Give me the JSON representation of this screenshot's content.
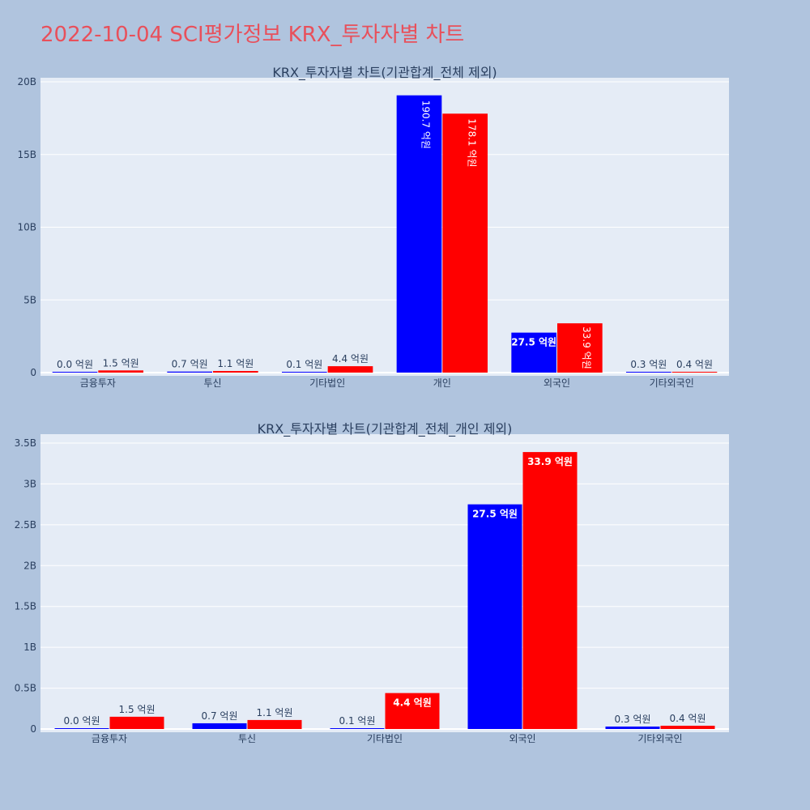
{
  "page": {
    "title": "2022-10-04 SCI평가정보 KRX_투자자별 차트",
    "colors": {
      "background": "#b0c4de",
      "plot_bg": "#e5ecf6",
      "grid": "#ffffff",
      "title": "#e8505b",
      "series_a": "#0000ff",
      "series_b": "#ff0000"
    }
  },
  "chart_data": [
    {
      "type": "bar",
      "title": "KRX_투자자별 차트(기관합계_전체 제외)",
      "xlabel": "",
      "ylabel": "",
      "categories": [
        "금융투자",
        "투신",
        "기타법인",
        "개인",
        "외국인",
        "기타외국인"
      ],
      "series": [
        {
          "color": "#0000ff",
          "values": [
            0.0,
            0.07,
            0.01,
            19.07,
            2.75,
            0.03
          ],
          "labels": [
            "0.0 억원",
            "0.7 억원",
            "0.1 억원",
            "190.7 억원",
            "27.5 억원",
            "0.3 억원"
          ]
        },
        {
          "color": "#ff0000",
          "values": [
            0.15,
            0.11,
            0.44,
            17.81,
            3.39,
            0.04
          ],
          "labels": [
            "1.5 억원",
            "1.1 억원",
            "4.4 억원",
            "178.1 억원",
            "33.9 억원",
            "0.4 억원"
          ]
        }
      ],
      "ylim": [
        0,
        20
      ],
      "yticks": [
        0,
        5,
        10,
        15,
        20
      ],
      "yticklabels": [
        "0",
        "5B",
        "10B",
        "15B",
        "20B"
      ],
      "grid": true,
      "legend": "none"
    },
    {
      "type": "bar",
      "title": "KRX_투자자별 차트(기관합계_전체_개인 제외)",
      "xlabel": "",
      "ylabel": "",
      "categories": [
        "금융투자",
        "투신",
        "기타법인",
        "외국인",
        "기타외국인"
      ],
      "series": [
        {
          "color": "#0000ff",
          "values": [
            0.0,
            0.07,
            0.01,
            2.75,
            0.03
          ],
          "labels": [
            "0.0 억원",
            "0.7 억원",
            "0.1 억원",
            "27.5 억원",
            "0.3 억원"
          ]
        },
        {
          "color": "#ff0000",
          "values": [
            0.15,
            0.11,
            0.44,
            3.39,
            0.04
          ],
          "labels": [
            "1.5 억원",
            "1.1 억원",
            "4.4 억원",
            "33.9 억원",
            "0.4 억원"
          ]
        }
      ],
      "ylim": [
        0,
        3.5
      ],
      "yticks": [
        0,
        0.5,
        1,
        1.5,
        2,
        2.5,
        3,
        3.5
      ],
      "yticklabels": [
        "0",
        "0.5B",
        "1B",
        "1.5B",
        "2B",
        "2.5B",
        "3B",
        "3.5B"
      ],
      "grid": true,
      "legend": "none"
    }
  ]
}
